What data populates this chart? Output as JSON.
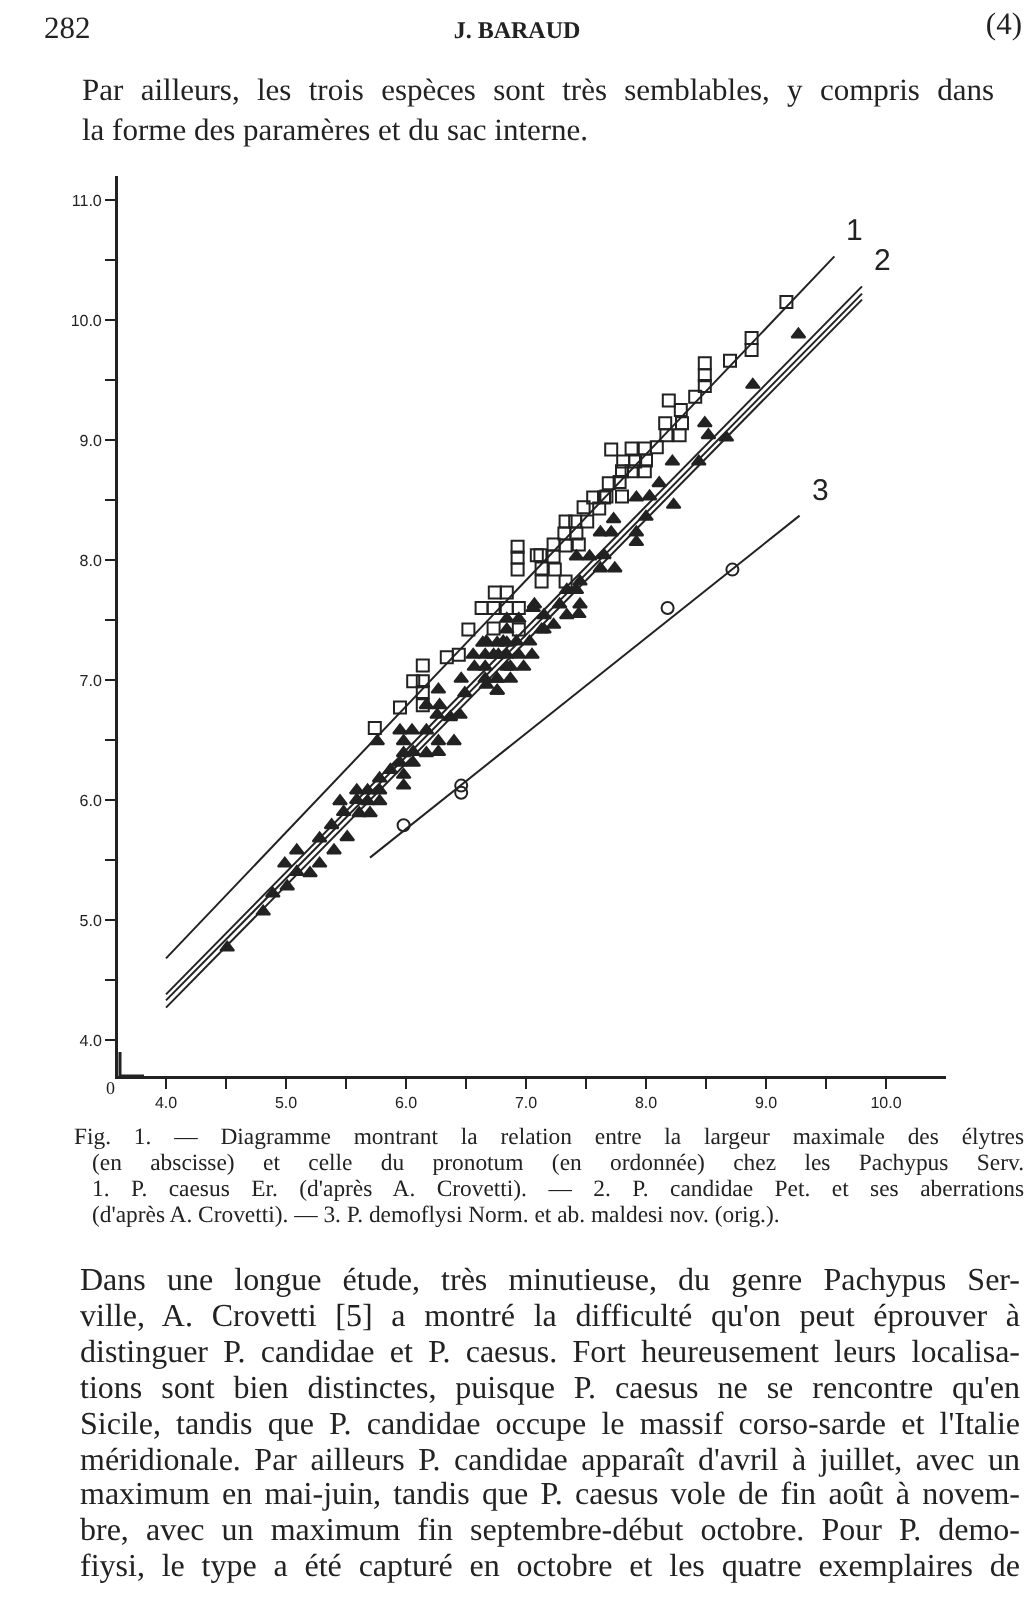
{
  "chart_data": {
    "type": "scatter",
    "annotations": [
      "282",
      "J. BARAUD",
      "(4)",
      "Par ailleurs, les trois espèces sont très semblables, y compris dans\nla forme des paramères et du sac interne.",
      "0",
      "Fig. 1. — Diagramme montrant la relation entre la largeur maximale des élytres\n(en abscisse) et celle du pronotum (en ordonnée) chez les Pachypus Serv.\n1. P. caesus Er. (d'après A. Crovetti). — 2. P. candidae Pet. et ses aberrations\n(d'après A. Crovetti). — 3. P. demoflysi Norm. et ab. maldesi nov. (orig.).",
      "Dans une longue étude, très minutieuse, du genre Pachypus Ser-\nville, A. Crovetti [5] a montré la difficulté qu'on peut éprouver à\ndistinguer P. candidae et P. caesus. Fort heureusement leurs localisa-\ntions sont bien distinctes, puisque P. caesus ne se rencontre qu'en\nSicile, tandis que P. candidae occupe le massif corso-sarde et l'Italie\nméridionale. Par ailleurs P. candidae apparaît d'avril à juillet, avec un\nmaximum en mai-juin, tandis que P. caesus vole de fin août à novem-\nbre, avec un maximum fin septembre-début octobre. Pour P. demo-\nfiysi, le type a été capturé en octobre et les quatre exemplaires de"
    ],
    "xlim": [
      3.6,
      10.5
    ],
    "ylim": [
      3.7,
      11.2
    ],
    "xticks": [
      {
        "value": 4,
        "label": "4.0"
      },
      {
        "value": 4.5,
        "label": null
      },
      {
        "value": 5,
        "label": "5.0"
      },
      {
        "value": 5.5,
        "label": null
      },
      {
        "value": 6,
        "label": "6.0"
      },
      {
        "value": 6.5,
        "label": null
      },
      {
        "value": 7,
        "label": "7.0"
      },
      {
        "value": 7.5,
        "label": null
      },
      {
        "value": 8,
        "label": "8.0"
      },
      {
        "value": 8.5,
        "label": null
      },
      {
        "value": 9,
        "label": "9.0"
      },
      {
        "value": 9.5,
        "label": null
      },
      {
        "value": 10,
        "label": "10.0"
      }
    ],
    "yticks": [
      {
        "value": 4,
        "label": "4.0"
      },
      {
        "value": 4.5,
        "label": null
      },
      {
        "value": 5,
        "label": "5.0"
      },
      {
        "value": 5.5,
        "label": null
      },
      {
        "value": 6,
        "label": "6.0"
      },
      {
        "value": 6.5,
        "label": null
      },
      {
        "value": 7,
        "label": "7.0"
      },
      {
        "value": 7.5,
        "label": null
      },
      {
        "value": 8,
        "label": "8.0"
      },
      {
        "value": 8.5,
        "label": null
      },
      {
        "value": 9,
        "label": "9.0"
      },
      {
        "value": 9.5,
        "label": null
      },
      {
        "value": 10,
        "label": "10.0"
      },
      {
        "value": 10.5,
        "label": null
      },
      {
        "value": 11,
        "label": "11.0"
      }
    ],
    "grid": false,
    "legend": false,
    "series": [
      {
        "marker": "square",
        "color": "#222222",
        "x": [
          9.17,
          8.88,
          8.88,
          8.7,
          8.49,
          8.49,
          8.49,
          8.41,
          8.19,
          8.29,
          8.16,
          8.3,
          8.17,
          8.28,
          8.09,
          7.99,
          7.88,
          7.71,
          7.81,
          7.91,
          8.0,
          7.8,
          7.88,
          7.99,
          7.78,
          7.69,
          7.67,
          7.8,
          7.56,
          7.65,
          7.48,
          7.61,
          7.41,
          7.33,
          7.51,
          7.32,
          7.42,
          7.23,
          7.33,
          7.44,
          7.12,
          7.23,
          7.13,
          7.24,
          7.33,
          7.13,
          6.93,
          6.93,
          6.93,
          7.09,
          6.74,
          6.84,
          6.63,
          6.73,
          6.84,
          6.94,
          6.52,
          6.73,
          6.94,
          6.34,
          6.44,
          6.14,
          6.06,
          6.14,
          6.14,
          5.95,
          6.14,
          5.74
        ],
        "values": [
          10.15,
          9.85,
          9.75,
          9.66,
          9.64,
          9.54,
          9.45,
          9.36,
          9.33,
          9.25,
          9.14,
          9.14,
          9.04,
          9.04,
          8.94,
          8.93,
          8.93,
          8.92,
          8.82,
          8.82,
          8.83,
          8.74,
          8.74,
          8.74,
          8.65,
          8.64,
          8.53,
          8.53,
          8.52,
          8.52,
          8.44,
          8.43,
          8.32,
          8.32,
          8.32,
          8.22,
          8.22,
          8.13,
          8.12,
          8.13,
          8.04,
          8.03,
          7.93,
          7.92,
          7.82,
          7.82,
          8.11,
          8.02,
          7.92,
          8.04,
          7.73,
          7.73,
          7.6,
          7.6,
          7.6,
          7.6,
          7.42,
          7.43,
          7.42,
          7.19,
          7.21,
          7.12,
          6.99,
          6.99,
          6.9,
          6.77,
          6.79,
          6.6
        ]
      },
      {
        "marker": "triangle",
        "color": "#222222",
        "x": [
          9.27,
          8.89,
          8.49,
          8.52,
          8.67,
          8.44,
          8.22,
          8.11,
          8.03,
          7.92,
          8.23,
          8.0,
          7.73,
          7.62,
          7.71,
          7.92,
          7.92,
          7.42,
          7.53,
          7.65,
          7.62,
          7.74,
          7.45,
          7.34,
          7.42,
          7.28,
          7.45,
          7.15,
          7.34,
          7.23,
          7.07,
          7.15,
          7.44,
          7.13,
          7.03,
          6.92,
          6.81,
          6.67,
          7.05,
          6.94,
          6.84,
          6.73,
          6.98,
          6.87,
          6.76,
          6.87,
          6.76,
          6.67,
          7.06,
          6.84,
          6.94,
          6.84,
          6.64,
          6.76,
          6.84,
          6.56,
          6.66,
          6.77,
          6.57,
          6.66,
          6.84,
          6.46,
          6.66,
          6.76,
          6.27,
          6.49,
          6.76,
          6.17,
          6.28,
          6.26,
          6.37,
          6.45,
          5.95,
          6.05,
          6.17,
          5.76,
          5.98,
          6.27,
          6.4,
          6.06,
          6.17,
          5.98,
          6.27,
          5.95,
          6.06,
          5.87,
          5.98,
          5.98,
          5.78,
          5.59,
          5.68,
          5.78,
          5.45,
          5.59,
          5.68,
          5.78,
          5.48,
          5.61,
          5.7,
          5.38,
          5.51,
          5.28,
          5.4,
          5.28,
          5.09,
          4.99,
          5.09,
          5.2,
          5.01,
          4.89,
          4.81,
          4.51
        ],
        "values": [
          9.88,
          9.46,
          9.14,
          9.04,
          9.02,
          8.82,
          8.82,
          8.64,
          8.53,
          8.52,
          8.46,
          8.36,
          8.34,
          8.23,
          8.23,
          8.23,
          8.15,
          8.03,
          8.03,
          8.04,
          7.93,
          7.93,
          7.82,
          7.75,
          7.75,
          7.63,
          7.63,
          7.54,
          7.54,
          7.46,
          7.63,
          7.42,
          7.55,
          7.42,
          7.32,
          7.32,
          7.32,
          7.32,
          7.21,
          7.21,
          7.21,
          7.21,
          7.11,
          7.11,
          7.01,
          7.01,
          6.91,
          6.96,
          7.6,
          7.51,
          7.51,
          7.42,
          7.31,
          7.31,
          7.31,
          7.21,
          7.21,
          7.21,
          7.11,
          7.11,
          7.11,
          7.01,
          7.01,
          7.01,
          6.92,
          6.89,
          6.91,
          6.79,
          6.79,
          6.71,
          6.69,
          6.71,
          6.58,
          6.58,
          6.58,
          6.49,
          6.49,
          6.49,
          6.49,
          6.4,
          6.39,
          6.39,
          6.4,
          6.31,
          6.31,
          6.25,
          6.21,
          6.12,
          6.18,
          6.08,
          6.08,
          6.08,
          5.99,
          6.0,
          5.99,
          5.99,
          5.9,
          5.89,
          5.89,
          5.79,
          5.69,
          5.68,
          5.58,
          5.47,
          5.58,
          5.47,
          5.4,
          5.39,
          5.28,
          5.22,
          5.07,
          4.77
        ]
      },
      {
        "marker": "circle",
        "color": "#222222",
        "x": [
          8.72,
          8.18,
          6.46,
          6.46,
          5.98
        ],
        "values": [
          7.92,
          7.6,
          6.12,
          6.06,
          5.79
        ]
      },
      {
        "type": "line",
        "name": "1",
        "color": "#222222",
        "x": [
          4.0,
          9.57
        ],
        "values": [
          4.68,
          10.53
        ]
      },
      {
        "type": "line",
        "name": "2",
        "color": "#222222",
        "x": [
          4.0,
          9.8
        ],
        "values": [
          4.38,
          10.28
        ]
      },
      {
        "type": "line",
        "color": "#222222",
        "x": [
          4.0,
          9.8
        ],
        "values": [
          4.33,
          10.22
        ]
      },
      {
        "type": "line",
        "color": "#222222",
        "x": [
          4.0,
          9.8
        ],
        "values": [
          4.27,
          10.17
        ]
      },
      {
        "type": "line",
        "name": "3",
        "color": "#222222",
        "x": [
          5.7,
          9.28
        ],
        "values": [
          5.52,
          8.37
        ]
      }
    ]
  }
}
